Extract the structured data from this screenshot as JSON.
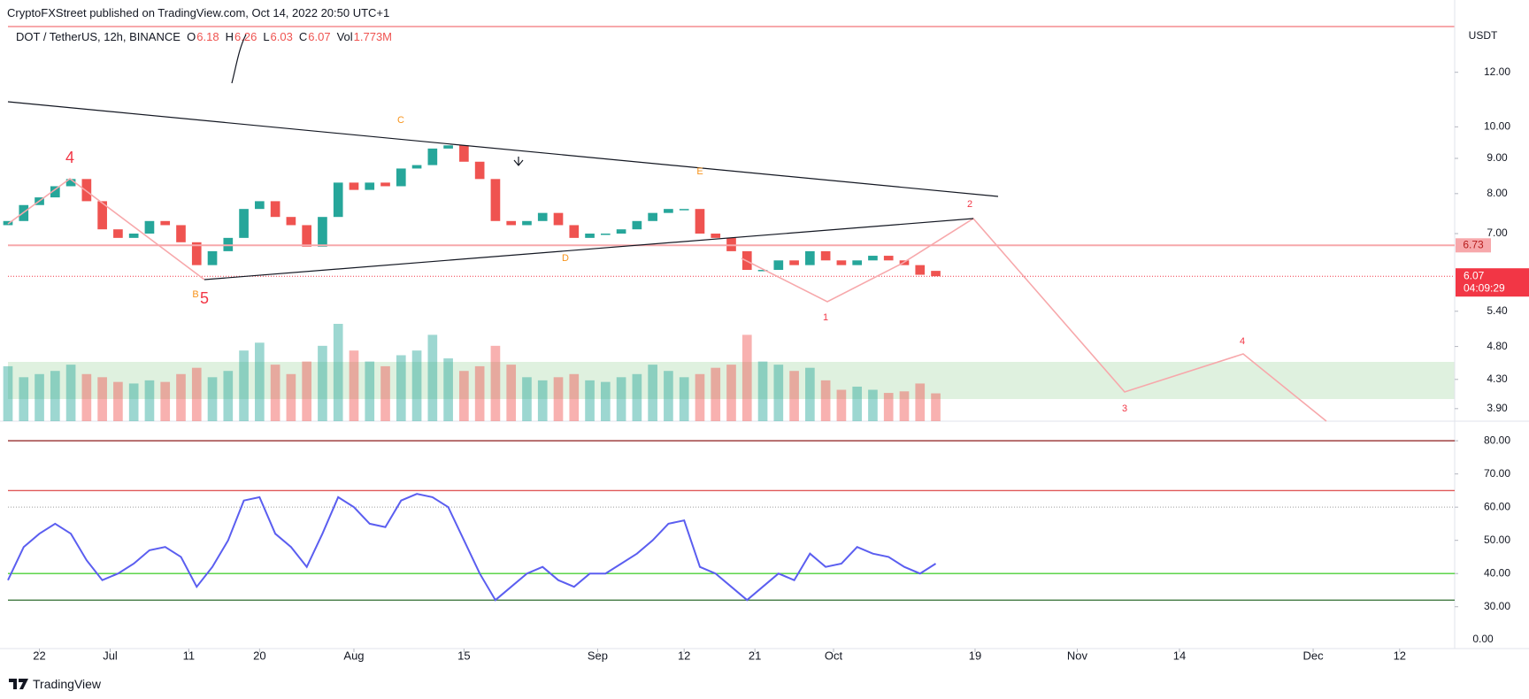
{
  "header": {
    "published": "CryptoFXStreet published on TradingView.com, Oct 14, 2022 20:50 UTC+1",
    "brand": "TradingView"
  },
  "chart_data": [
    {
      "type": "candlestick",
      "title": "DOT / TetherUS, 12h, BINANCE",
      "legend_items": [
        {
          "label": "O",
          "value": 6.18
        },
        {
          "label": "H",
          "value": 6.26
        },
        {
          "label": "L",
          "value": 6.03
        },
        {
          "label": "C",
          "value": 6.07
        },
        {
          "label": "Vol",
          "value": 1.773,
          "value_label": "1.773M"
        }
      ],
      "axis_unit": "USDT",
      "x": [
        "2022-06-18",
        "2022-06-20",
        "2022-06-22",
        "2022-06-24",
        "2022-06-26",
        "2022-06-28",
        "2022-06-30",
        "2022-07-02",
        "2022-07-04",
        "2022-07-06",
        "2022-07-08",
        "2022-07-10",
        "2022-07-12",
        "2022-07-14",
        "2022-07-16",
        "2022-07-18",
        "2022-07-20",
        "2022-07-22",
        "2022-07-24",
        "2022-07-26",
        "2022-07-28",
        "2022-07-30",
        "2022-08-01",
        "2022-08-03",
        "2022-08-05",
        "2022-08-07",
        "2022-08-09",
        "2022-08-11",
        "2022-08-13",
        "2022-08-15",
        "2022-08-17",
        "2022-08-19",
        "2022-08-21",
        "2022-08-23",
        "2022-08-25",
        "2022-08-27",
        "2022-08-29",
        "2022-08-31",
        "2022-09-02",
        "2022-09-04",
        "2022-09-06",
        "2022-09-08",
        "2022-09-10",
        "2022-09-12",
        "2022-09-14",
        "2022-09-16",
        "2022-09-18",
        "2022-09-20",
        "2022-09-22",
        "2022-09-24",
        "2022-09-26",
        "2022-09-28",
        "2022-09-30",
        "2022-10-02",
        "2022-10-04",
        "2022-10-06",
        "2022-10-08",
        "2022-10-10",
        "2022-10-12",
        "2022-10-14"
      ],
      "open": [
        7.2,
        7.3,
        7.7,
        7.9,
        8.2,
        8.4,
        7.8,
        7.1,
        6.9,
        7.0,
        7.3,
        7.2,
        6.8,
        6.3,
        6.6,
        6.9,
        7.6,
        7.8,
        7.4,
        7.2,
        6.7,
        7.4,
        8.3,
        8.1,
        8.3,
        8.2,
        8.7,
        8.8,
        9.3,
        9.4,
        8.9,
        8.4,
        7.3,
        7.2,
        7.3,
        7.5,
        7.2,
        6.9,
        7.0,
        7.0,
        7.1,
        7.3,
        7.5,
        7.6,
        7.6,
        7.0,
        6.9,
        6.6,
        6.2,
        6.2,
        6.4,
        6.3,
        6.6,
        6.4,
        6.3,
        6.4,
        6.5,
        6.4,
        6.3,
        6.18
      ],
      "close": [
        7.3,
        7.7,
        7.9,
        8.2,
        8.4,
        7.8,
        7.1,
        6.9,
        7.0,
        7.3,
        7.2,
        6.8,
        6.3,
        6.6,
        6.9,
        7.6,
        7.8,
        7.4,
        7.2,
        6.7,
        7.4,
        8.3,
        8.1,
        8.3,
        8.2,
        8.7,
        8.8,
        9.3,
        9.4,
        8.9,
        8.4,
        7.3,
        7.2,
        7.3,
        7.5,
        7.2,
        6.9,
        7.0,
        7.0,
        7.1,
        7.3,
        7.5,
        7.6,
        7.6,
        7.0,
        6.9,
        6.6,
        6.2,
        6.2,
        6.4,
        6.3,
        6.6,
        6.4,
        6.3,
        6.4,
        6.5,
        6.4,
        6.3,
        6.1,
        6.07
      ],
      "volume": [
        3.5,
        2.8,
        3.0,
        3.2,
        3.6,
        3.0,
        2.8,
        2.5,
        2.4,
        2.6,
        2.5,
        3.0,
        3.4,
        2.8,
        3.2,
        4.5,
        5.0,
        3.6,
        3.0,
        3.8,
        4.8,
        6.2,
        4.5,
        3.8,
        3.5,
        4.2,
        4.5,
        5.5,
        4.0,
        3.2,
        3.5,
        4.8,
        3.6,
        2.8,
        2.6,
        2.8,
        3.0,
        2.6,
        2.5,
        2.8,
        3.0,
        3.6,
        3.2,
        2.8,
        3.0,
        3.4,
        3.6,
        5.5,
        3.8,
        3.6,
        3.2,
        3.4,
        2.6,
        2.0,
        2.2,
        2.0,
        1.8,
        1.9,
        2.4,
        1.773
      ],
      "up_color": "#26a69a",
      "down_color": "#ef5350",
      "log_scale": true,
      "xlim": [
        "2022-06-18",
        "2022-12-19"
      ],
      "ylim": [
        3.74,
        13.94
      ],
      "yticks": [
        {
          "value": 12,
          "label": "12.00"
        },
        {
          "value": 10,
          "label": "10.00"
        },
        {
          "value": 9,
          "label": "9.00"
        },
        {
          "value": 8,
          "label": "8.00"
        },
        {
          "value": 7,
          "label": "7.00"
        },
        {
          "value": 5.4,
          "label": "5.40"
        },
        {
          "value": 4.8,
          "label": "4.80"
        },
        {
          "value": 4.3,
          "label": "4.30"
        },
        {
          "value": 3.9,
          "label": "3.90"
        }
      ],
      "price_line": {
        "value": 6.73,
        "color": "#f7a8ab"
      },
      "last_price": {
        "value": 6.07,
        "color": "#f23645",
        "countdown": "04:09:29"
      },
      "annotations": [
        "4",
        "5",
        "B",
        "C",
        "D",
        "E",
        "1",
        "2",
        "3",
        "4"
      ]
    },
    {
      "type": "line",
      "x": [
        "2022-06-18",
        "2022-06-20",
        "2022-06-22",
        "2022-06-24",
        "2022-06-26",
        "2022-06-28",
        "2022-06-30",
        "2022-07-02",
        "2022-07-04",
        "2022-07-06",
        "2022-07-08",
        "2022-07-10",
        "2022-07-12",
        "2022-07-14",
        "2022-07-16",
        "2022-07-18",
        "2022-07-20",
        "2022-07-22",
        "2022-07-24",
        "2022-07-26",
        "2022-07-28",
        "2022-07-30",
        "2022-08-01",
        "2022-08-03",
        "2022-08-05",
        "2022-08-07",
        "2022-08-09",
        "2022-08-11",
        "2022-08-13",
        "2022-08-15",
        "2022-08-17",
        "2022-08-19",
        "2022-08-21",
        "2022-08-23",
        "2022-08-25",
        "2022-08-27",
        "2022-08-29",
        "2022-08-31",
        "2022-09-02",
        "2022-09-04",
        "2022-09-06",
        "2022-09-08",
        "2022-09-10",
        "2022-09-12",
        "2022-09-14",
        "2022-09-16",
        "2022-09-18",
        "2022-09-20",
        "2022-09-22",
        "2022-09-24",
        "2022-09-26",
        "2022-09-28",
        "2022-09-30",
        "2022-10-02",
        "2022-10-04",
        "2022-10-06",
        "2022-10-08",
        "2022-10-10",
        "2022-10-12",
        "2022-10-14"
      ],
      "series": [
        {
          "color": "#5b5ef0",
          "values": [
            38,
            48,
            52,
            55,
            52,
            44,
            38,
            40,
            43,
            47,
            48,
            45,
            36,
            42,
            50,
            62,
            63,
            52,
            48,
            42,
            52,
            63,
            60,
            55,
            54,
            62,
            64,
            63,
            60,
            50,
            40,
            32,
            36,
            40,
            42,
            38,
            36,
            40,
            40,
            43,
            46,
            50,
            55,
            56,
            42,
            40,
            36,
            32,
            36,
            40,
            38,
            46,
            42,
            43,
            48,
            46,
            45,
            42,
            40,
            43
          ]
        }
      ],
      "xlim": [
        "2022-06-18",
        "2022-12-19"
      ],
      "xticks": [
        {
          "value": "2022-06-22",
          "label": "22"
        },
        {
          "value": "2022-07-01",
          "label": "Jul"
        },
        {
          "value": "2022-07-11",
          "label": "11"
        },
        {
          "value": "2022-07-20",
          "label": "20"
        },
        {
          "value": "2022-08-01",
          "label": "Aug"
        },
        {
          "value": "2022-08-15",
          "label": "15"
        },
        {
          "value": "2022-09-01",
          "label": "Sep"
        },
        {
          "value": "2022-09-12",
          "label": "12"
        },
        {
          "value": "2022-09-21",
          "label": "21"
        },
        {
          "value": "2022-10-01",
          "label": "Oct"
        },
        {
          "value": "2022-10-19",
          "label": "19"
        },
        {
          "value": "2022-11-01",
          "label": "Nov"
        },
        {
          "value": "2022-11-14",
          "label": "14"
        },
        {
          "value": "2022-12-01",
          "label": "Dec"
        },
        {
          "value": "2022-12-12",
          "label": "12"
        }
      ],
      "ylim": [
        17.4,
        85.9
      ],
      "yticks": [
        {
          "value": 80,
          "label": "80.00"
        },
        {
          "value": 70,
          "label": "70.00"
        },
        {
          "value": 60,
          "label": "60.00"
        },
        {
          "value": 50,
          "label": "50.00"
        },
        {
          "value": 40,
          "label": "40.00"
        },
        {
          "value": 30,
          "label": "30.00"
        }
      ],
      "extra_axis_label": "0.00",
      "levels": [
        {
          "value": 80,
          "color": "#8b1a1a"
        },
        {
          "value": 65,
          "color": "#e05a5a"
        },
        {
          "value": 60,
          "color": "#9e9e9e",
          "dotted": true
        },
        {
          "value": 40,
          "color": "#4cd137"
        },
        {
          "value": 32,
          "color": "#2e6b2e"
        }
      ]
    }
  ]
}
